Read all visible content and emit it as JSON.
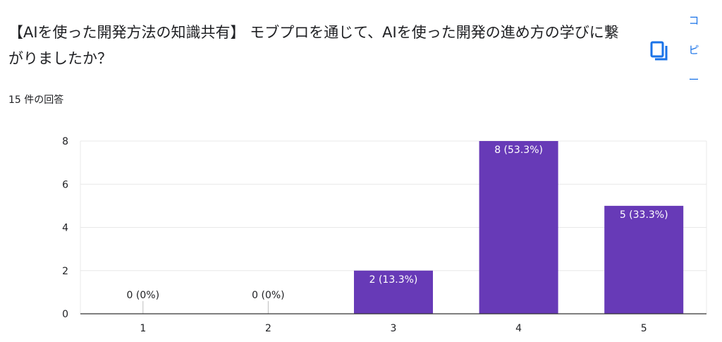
{
  "question": {
    "title": "【AIを使った開発方法の知識共有】 モブプロを通じて、AIを使った開発の進め方の学びに繋がりましたか？",
    "response_count": "15 件の回答"
  },
  "copy": {
    "chars": [
      "コ",
      "ピ",
      "ー"
    ],
    "icon": "copy-icon"
  },
  "colors": {
    "bar": "#673ab7",
    "grid": "#e8e8e8",
    "axis": "#333333",
    "copy_accent": "#1a73e8"
  },
  "chart_data": {
    "type": "bar",
    "categories": [
      "1",
      "2",
      "3",
      "4",
      "5"
    ],
    "values": [
      0,
      0,
      2,
      8,
      5
    ],
    "data_labels": [
      "0 (0%)",
      "0 (0%)",
      "2 (13.3%)",
      "8 (53.3%)",
      "5 (33.3%)"
    ],
    "yticks": [
      0,
      2,
      4,
      6,
      8
    ],
    "ylim": [
      0,
      8
    ],
    "title": "",
    "xlabel": "",
    "ylabel": "",
    "grid": true
  }
}
